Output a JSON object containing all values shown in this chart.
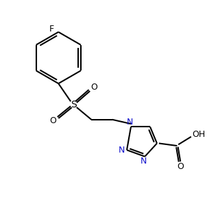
{
  "background_color": "#ffffff",
  "line_color": "#000000",
  "N_color": "#1010cc",
  "line_width": 1.5,
  "figsize": [
    3.02,
    3.23
  ],
  "dpi": 100,
  "xlim": [
    0,
    8
  ],
  "ylim": [
    0,
    8.5
  ]
}
